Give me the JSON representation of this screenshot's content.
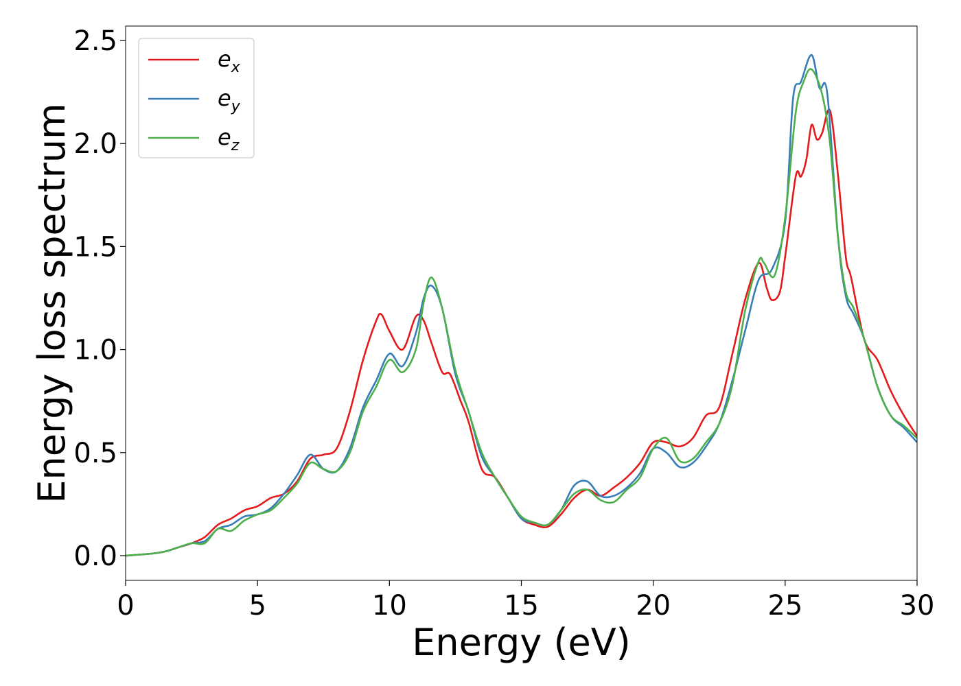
{
  "chart_data": {
    "type": "line",
    "xlabel": "Energy (eV)",
    "ylabel": "Energy loss spectrum",
    "xlim": [
      0,
      30
    ],
    "ylim": [
      -0.12,
      2.57
    ],
    "xticks": [
      0,
      5,
      10,
      15,
      20,
      25,
      30
    ],
    "xtick_labels": [
      "0",
      "5",
      "10",
      "15",
      "20",
      "25",
      "30"
    ],
    "yticks": [
      0.0,
      0.5,
      1.0,
      1.5,
      2.0,
      2.5
    ],
    "ytick_labels": [
      "0.0",
      "0.5",
      "1.0",
      "1.5",
      "2.0",
      "2.5"
    ],
    "grid": false,
    "legend_position": "top-left",
    "series": [
      {
        "name": "e",
        "subscript": "x",
        "color": "#e41a1c",
        "x": [
          0,
          1,
          1.5,
          2,
          2.5,
          3,
          3.5,
          4,
          4.5,
          5,
          5.5,
          6,
          6.5,
          7,
          7.5,
          8,
          8.5,
          9,
          9.5,
          9.7,
          10,
          10.5,
          11,
          11.3,
          11.6,
          12,
          12.3,
          12.7,
          13,
          13.5,
          14,
          14.5,
          15,
          15.5,
          16,
          16.5,
          17,
          17.5,
          18,
          18.5,
          19,
          19.5,
          20,
          20.5,
          21,
          21.5,
          22,
          22.5,
          23,
          23.5,
          24,
          24.3,
          24.5,
          24.8,
          25,
          25.4,
          25.6,
          25.8,
          26,
          26.2,
          26.4,
          26.7,
          27,
          27.3,
          27.5,
          28,
          28.5,
          29,
          29.5,
          30
        ],
        "y": [
          0.0,
          0.01,
          0.02,
          0.04,
          0.06,
          0.09,
          0.15,
          0.18,
          0.22,
          0.24,
          0.28,
          0.3,
          0.36,
          0.47,
          0.49,
          0.52,
          0.7,
          0.95,
          1.14,
          1.17,
          1.09,
          1.0,
          1.16,
          1.14,
          1.03,
          0.89,
          0.88,
          0.75,
          0.65,
          0.42,
          0.38,
          0.28,
          0.18,
          0.15,
          0.14,
          0.2,
          0.28,
          0.32,
          0.29,
          0.33,
          0.38,
          0.45,
          0.55,
          0.55,
          0.53,
          0.57,
          0.68,
          0.72,
          0.98,
          1.25,
          1.42,
          1.3,
          1.24,
          1.28,
          1.45,
          1.84,
          1.84,
          1.92,
          2.09,
          2.02,
          2.05,
          2.16,
          1.85,
          1.45,
          1.35,
          1.05,
          0.95,
          0.8,
          0.68,
          0.58
        ]
      },
      {
        "name": "e",
        "subscript": "y",
        "color": "#377eb8",
        "x": [
          0,
          1,
          1.5,
          2,
          2.5,
          3,
          3.5,
          4,
          4.5,
          5,
          5.5,
          6,
          6.5,
          7,
          7.5,
          8,
          8.5,
          9,
          9.5,
          10,
          10.5,
          11,
          11.3,
          11.6,
          12,
          12.5,
          13,
          13.5,
          14,
          14.5,
          15,
          15.5,
          16,
          16.5,
          17,
          17.5,
          18,
          18.5,
          19,
          19.5,
          20,
          20.5,
          21,
          21.5,
          22,
          22.5,
          23,
          23.5,
          24,
          24.5,
          25,
          25.3,
          25.6,
          26,
          26.3,
          26.6,
          27,
          27.3,
          27.6,
          28,
          28.5,
          29,
          29.5,
          30
        ],
        "y": [
          0.0,
          0.01,
          0.02,
          0.04,
          0.06,
          0.07,
          0.13,
          0.15,
          0.19,
          0.2,
          0.23,
          0.3,
          0.39,
          0.49,
          0.42,
          0.41,
          0.52,
          0.72,
          0.85,
          0.98,
          0.92,
          1.08,
          1.25,
          1.31,
          1.2,
          0.88,
          0.7,
          0.48,
          0.38,
          0.28,
          0.18,
          0.16,
          0.15,
          0.22,
          0.34,
          0.36,
          0.29,
          0.29,
          0.33,
          0.4,
          0.52,
          0.5,
          0.43,
          0.45,
          0.53,
          0.64,
          0.85,
          1.1,
          1.34,
          1.39,
          1.62,
          2.22,
          2.3,
          2.43,
          2.27,
          2.24,
          1.55,
          1.26,
          1.17,
          1.05,
          0.82,
          0.68,
          0.62,
          0.55
        ]
      },
      {
        "name": "e",
        "subscript": "z",
        "color": "#4daf4a",
        "x": [
          0,
          1,
          1.5,
          2,
          2.5,
          3,
          3.5,
          4,
          4.5,
          5,
          5.5,
          6,
          6.5,
          7,
          7.5,
          8,
          8.5,
          9,
          9.5,
          10,
          10.5,
          11,
          11.3,
          11.6,
          12,
          12.5,
          13,
          13.5,
          14,
          14.5,
          15,
          15.5,
          16,
          16.5,
          17,
          17.5,
          18,
          18.5,
          19,
          19.5,
          20,
          20.5,
          21,
          21.5,
          22,
          22.5,
          23,
          23.5,
          24,
          24.2,
          24.6,
          25,
          25.4,
          25.7,
          26,
          26.4,
          26.7,
          27,
          27.3,
          27.6,
          28,
          28.5,
          29,
          29.5,
          30
        ],
        "y": [
          0.0,
          0.01,
          0.02,
          0.04,
          0.06,
          0.06,
          0.13,
          0.12,
          0.17,
          0.2,
          0.22,
          0.28,
          0.35,
          0.45,
          0.42,
          0.41,
          0.5,
          0.7,
          0.82,
          0.95,
          0.89,
          1.0,
          1.23,
          1.35,
          1.2,
          0.9,
          0.7,
          0.5,
          0.38,
          0.28,
          0.19,
          0.16,
          0.15,
          0.22,
          0.3,
          0.32,
          0.27,
          0.26,
          0.32,
          0.38,
          0.52,
          0.57,
          0.46,
          0.47,
          0.55,
          0.64,
          0.83,
          1.2,
          1.43,
          1.42,
          1.36,
          1.64,
          2.15,
          2.3,
          2.36,
          2.24,
          2.0,
          1.55,
          1.28,
          1.2,
          1.05,
          0.82,
          0.68,
          0.63,
          0.57
        ]
      }
    ]
  }
}
